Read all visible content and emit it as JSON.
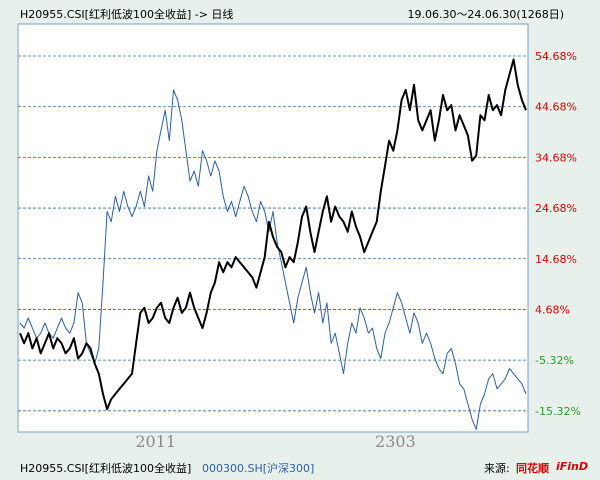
{
  "header": {
    "title": "H20955.CSI[红利低波100全收益] -> 日线",
    "range": "19.06.30～24.06.30(1268日)"
  },
  "footer": {
    "legend_primary": "H20955.CSI[红利低波100全收益]",
    "legend_secondary": "000300.SH[沪深300]",
    "source_label": "来源:",
    "source_brand": "同花顺",
    "source_brand_suffix": "iFinD"
  },
  "colors": {
    "background": "#e8f0ec",
    "plot_background": "#ffffff",
    "grid": "#2a6fb0",
    "primary_series": "#000000",
    "secondary_series": "#2a5fad",
    "positive_tick": "#e00000",
    "negative_tick": "#2a9a2a"
  },
  "chart_data": {
    "type": "line",
    "xlabel": "",
    "ylabel": "",
    "x_tick_labels": [
      "2011",
      "2303"
    ],
    "y_ticks": [
      {
        "value": 54.68,
        "label": "54.68%"
      },
      {
        "value": 44.68,
        "label": "44.68%"
      },
      {
        "value": 34.68,
        "label": "34.68%"
      },
      {
        "value": 24.68,
        "label": "24.68%"
      },
      {
        "value": 14.68,
        "label": "14.68%"
      },
      {
        "value": 4.68,
        "label": "4.68%"
      },
      {
        "value": -5.32,
        "label": "-5.32%"
      },
      {
        "value": -15.32,
        "label": "-15.32%"
      }
    ],
    "ylim": [
      -19.5,
      61
    ],
    "grid": true,
    "legend_position": "bottom",
    "series": [
      {
        "name": "H20955.CSI[红利低波100全收益]",
        "color": "#000000",
        "points": [
          [
            0,
            0
          ],
          [
            1,
            -2
          ],
          [
            2,
            0
          ],
          [
            3,
            -3
          ],
          [
            4,
            -1
          ],
          [
            5,
            -4
          ],
          [
            6,
            -2
          ],
          [
            7,
            0
          ],
          [
            8,
            -3
          ],
          [
            9,
            -1
          ],
          [
            10,
            -2
          ],
          [
            11,
            -4
          ],
          [
            12,
            -3
          ],
          [
            13,
            -1
          ],
          [
            14,
            -5
          ],
          [
            15,
            -4
          ],
          [
            16,
            -2
          ],
          [
            17,
            -3
          ],
          [
            18,
            -6
          ],
          [
            19,
            -8
          ],
          [
            20,
            -12
          ],
          [
            21,
            -15
          ],
          [
            22,
            -13
          ],
          [
            23,
            -12
          ],
          [
            24,
            -11
          ],
          [
            25,
            -10
          ],
          [
            26,
            -9
          ],
          [
            27,
            -8
          ],
          [
            28,
            -2
          ],
          [
            29,
            4
          ],
          [
            30,
            5
          ],
          [
            31,
            2
          ],
          [
            32,
            3
          ],
          [
            33,
            5
          ],
          [
            34,
            6
          ],
          [
            35,
            3
          ],
          [
            36,
            2
          ],
          [
            37,
            5
          ],
          [
            38,
            7
          ],
          [
            39,
            4
          ],
          [
            40,
            5
          ],
          [
            41,
            8
          ],
          [
            42,
            5
          ],
          [
            43,
            3
          ],
          [
            44,
            1
          ],
          [
            45,
            4
          ],
          [
            46,
            8
          ],
          [
            47,
            10
          ],
          [
            48,
            14
          ],
          [
            49,
            12
          ],
          [
            50,
            14
          ],
          [
            51,
            13
          ],
          [
            52,
            15
          ],
          [
            53,
            14
          ],
          [
            54,
            13
          ],
          [
            55,
            12
          ],
          [
            56,
            11
          ],
          [
            57,
            9
          ],
          [
            58,
            12
          ],
          [
            59,
            15
          ],
          [
            60,
            22
          ],
          [
            61,
            19
          ],
          [
            62,
            17
          ],
          [
            63,
            16
          ],
          [
            64,
            13
          ],
          [
            65,
            15
          ],
          [
            66,
            14
          ],
          [
            67,
            18
          ],
          [
            68,
            23
          ],
          [
            69,
            25
          ],
          [
            70,
            20
          ],
          [
            71,
            16
          ],
          [
            72,
            20
          ],
          [
            73,
            24
          ],
          [
            74,
            27
          ],
          [
            75,
            22
          ],
          [
            76,
            25
          ],
          [
            77,
            23
          ],
          [
            78,
            22
          ],
          [
            79,
            20
          ],
          [
            80,
            24
          ],
          [
            81,
            21
          ],
          [
            82,
            19
          ],
          [
            83,
            16
          ],
          [
            84,
            18
          ],
          [
            85,
            20
          ],
          [
            86,
            22
          ],
          [
            87,
            28
          ],
          [
            88,
            33
          ],
          [
            89,
            38
          ],
          [
            90,
            36
          ],
          [
            91,
            40
          ],
          [
            92,
            46
          ],
          [
            93,
            48
          ],
          [
            94,
            44
          ],
          [
            95,
            49
          ],
          [
            96,
            42
          ],
          [
            97,
            40
          ],
          [
            98,
            42
          ],
          [
            99,
            44
          ],
          [
            100,
            38
          ],
          [
            101,
            42
          ],
          [
            102,
            47
          ],
          [
            103,
            44
          ],
          [
            104,
            45
          ],
          [
            105,
            40
          ],
          [
            106,
            43
          ],
          [
            107,
            41
          ],
          [
            108,
            39
          ],
          [
            109,
            34
          ],
          [
            110,
            35
          ],
          [
            111,
            43
          ],
          [
            112,
            42
          ],
          [
            113,
            47
          ],
          [
            114,
            44
          ],
          [
            115,
            45
          ],
          [
            116,
            43
          ],
          [
            117,
            48
          ],
          [
            118,
            51
          ],
          [
            119,
            54
          ],
          [
            120,
            49
          ],
          [
            121,
            46
          ],
          [
            122,
            44
          ]
        ]
      },
      {
        "name": "000300.SH[沪深300]",
        "color": "#2a5fad",
        "points": [
          [
            0,
            2
          ],
          [
            1,
            1
          ],
          [
            2,
            3
          ],
          [
            3,
            1
          ],
          [
            4,
            -1
          ],
          [
            5,
            0
          ],
          [
            6,
            2
          ],
          [
            7,
            0
          ],
          [
            8,
            -1
          ],
          [
            9,
            1
          ],
          [
            10,
            3
          ],
          [
            11,
            1
          ],
          [
            12,
            0
          ],
          [
            13,
            2
          ],
          [
            14,
            8
          ],
          [
            15,
            6
          ],
          [
            16,
            -2
          ],
          [
            17,
            -4
          ],
          [
            18,
            -6
          ],
          [
            19,
            -3
          ],
          [
            20,
            10
          ],
          [
            21,
            24
          ],
          [
            22,
            22
          ],
          [
            23,
            27
          ],
          [
            24,
            24
          ],
          [
            25,
            28
          ],
          [
            26,
            25
          ],
          [
            27,
            23
          ],
          [
            28,
            25
          ],
          [
            29,
            28
          ],
          [
            30,
            25
          ],
          [
            31,
            31
          ],
          [
            32,
            28
          ],
          [
            33,
            36
          ],
          [
            34,
            40
          ],
          [
            35,
            44
          ],
          [
            36,
            38
          ],
          [
            37,
            48
          ],
          [
            38,
            46
          ],
          [
            39,
            42
          ],
          [
            40,
            36
          ],
          [
            41,
            30
          ],
          [
            42,
            32
          ],
          [
            43,
            29
          ],
          [
            44,
            36
          ],
          [
            45,
            34
          ],
          [
            46,
            31
          ],
          [
            47,
            34
          ],
          [
            48,
            32
          ],
          [
            49,
            27
          ],
          [
            50,
            24
          ],
          [
            51,
            26
          ],
          [
            52,
            23
          ],
          [
            53,
            26
          ],
          [
            54,
            29
          ],
          [
            55,
            27
          ],
          [
            56,
            24
          ],
          [
            57,
            22
          ],
          [
            58,
            26
          ],
          [
            59,
            24
          ],
          [
            60,
            20
          ],
          [
            61,
            24
          ],
          [
            62,
            18
          ],
          [
            63,
            14
          ],
          [
            64,
            10
          ],
          [
            65,
            6
          ],
          [
            66,
            2
          ],
          [
            67,
            7
          ],
          [
            68,
            10
          ],
          [
            69,
            13
          ],
          [
            70,
            8
          ],
          [
            71,
            4
          ],
          [
            72,
            8
          ],
          [
            73,
            2
          ],
          [
            74,
            6
          ],
          [
            75,
            -2
          ],
          [
            76,
            0
          ],
          [
            77,
            -4
          ],
          [
            78,
            -8
          ],
          [
            79,
            -2
          ],
          [
            80,
            2
          ],
          [
            81,
            0
          ],
          [
            82,
            5
          ],
          [
            83,
            3
          ],
          [
            84,
            0
          ],
          [
            85,
            1
          ],
          [
            86,
            -3
          ],
          [
            87,
            -5
          ],
          [
            88,
            0
          ],
          [
            89,
            2
          ],
          [
            90,
            5
          ],
          [
            91,
            8
          ],
          [
            92,
            6
          ],
          [
            93,
            3
          ],
          [
            94,
            0
          ],
          [
            95,
            4
          ],
          [
            96,
            2
          ],
          [
            97,
            -2
          ],
          [
            98,
            0
          ],
          [
            99,
            -2
          ],
          [
            100,
            -5
          ],
          [
            101,
            -7
          ],
          [
            102,
            -8
          ],
          [
            103,
            -4
          ],
          [
            104,
            -3
          ],
          [
            105,
            -6
          ],
          [
            106,
            -10
          ],
          [
            107,
            -11
          ],
          [
            108,
            -14
          ],
          [
            109,
            -17
          ],
          [
            110,
            -19
          ],
          [
            111,
            -14
          ],
          [
            112,
            -12
          ],
          [
            113,
            -9
          ],
          [
            114,
            -8
          ],
          [
            115,
            -11
          ],
          [
            116,
            -10
          ],
          [
            117,
            -9
          ],
          [
            118,
            -7
          ],
          [
            119,
            -8
          ],
          [
            120,
            -9
          ],
          [
            121,
            -10
          ],
          [
            122,
            -12
          ]
        ]
      }
    ]
  }
}
